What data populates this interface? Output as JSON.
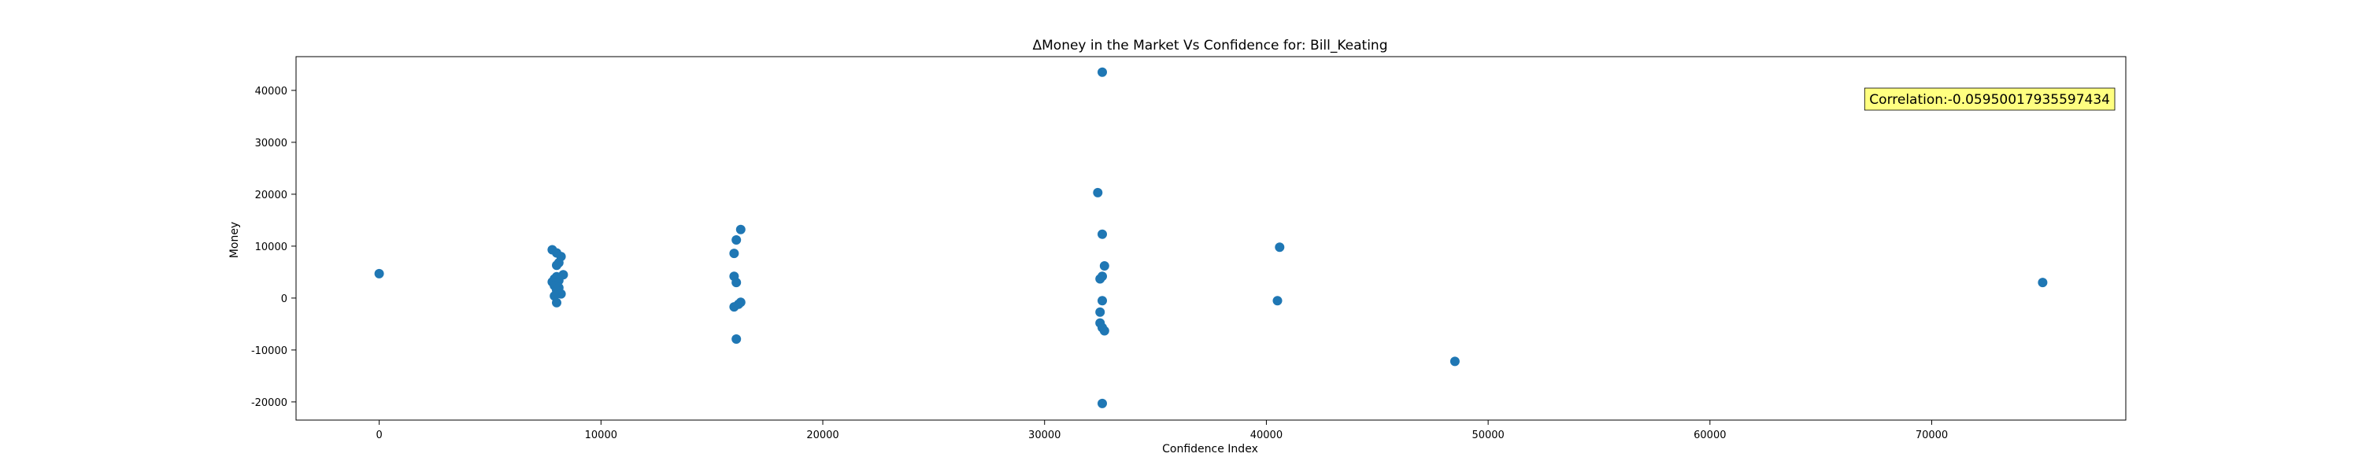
{
  "chart_data": {
    "type": "scatter",
    "title": "ΔMoney in the Market Vs Confidence for: Bill_Keating",
    "xlabel": "Confidence Index",
    "ylabel": "Money",
    "xlim": [
      -3750,
      78750
    ],
    "ylim": [
      -23500,
      46500
    ],
    "xticks": [
      0,
      10000,
      20000,
      30000,
      40000,
      50000,
      60000,
      70000
    ],
    "yticks": [
      -20000,
      -10000,
      0,
      10000,
      20000,
      30000,
      40000
    ],
    "grid": false,
    "marker_color": "#1f77b4",
    "annotation": {
      "text": "Correlation:-0.059500179355974​34",
      "position": "top-right",
      "facecolor": "#ffff80"
    },
    "points": [
      {
        "x": 0,
        "y": 4700
      },
      {
        "x": 7800,
        "y": 9300
      },
      {
        "x": 8000,
        "y": 8700
      },
      {
        "x": 8200,
        "y": 8000
      },
      {
        "x": 8000,
        "y": 6300
      },
      {
        "x": 8100,
        "y": 6800
      },
      {
        "x": 8300,
        "y": 4500
      },
      {
        "x": 8000,
        "y": 4100
      },
      {
        "x": 7900,
        "y": 3700
      },
      {
        "x": 8100,
        "y": 3400
      },
      {
        "x": 7800,
        "y": 3100
      },
      {
        "x": 8000,
        "y": 2800
      },
      {
        "x": 7900,
        "y": 2400
      },
      {
        "x": 8100,
        "y": 2000
      },
      {
        "x": 8000,
        "y": 1500
      },
      {
        "x": 8200,
        "y": 800
      },
      {
        "x": 7900,
        "y": 400
      },
      {
        "x": 8000,
        "y": -900
      },
      {
        "x": 16300,
        "y": 13200
      },
      {
        "x": 16100,
        "y": 11200
      },
      {
        "x": 16000,
        "y": 8600
      },
      {
        "x": 16000,
        "y": 4200
      },
      {
        "x": 16100,
        "y": 3000
      },
      {
        "x": 16300,
        "y": -800
      },
      {
        "x": 16200,
        "y": -1200
      },
      {
        "x": 16000,
        "y": -1700
      },
      {
        "x": 16100,
        "y": -7900
      },
      {
        "x": 32600,
        "y": 43500
      },
      {
        "x": 32400,
        "y": 20300
      },
      {
        "x": 32600,
        "y": 12300
      },
      {
        "x": 32700,
        "y": 6200
      },
      {
        "x": 32600,
        "y": 4200
      },
      {
        "x": 32500,
        "y": 3700
      },
      {
        "x": 32600,
        "y": -500
      },
      {
        "x": 32500,
        "y": -2700
      },
      {
        "x": 32500,
        "y": -4800
      },
      {
        "x": 32600,
        "y": -5700
      },
      {
        "x": 32700,
        "y": -6300
      },
      {
        "x": 32600,
        "y": -20300
      },
      {
        "x": 40600,
        "y": 9800
      },
      {
        "x": 40500,
        "y": -500
      },
      {
        "x": 48500,
        "y": -12200
      },
      {
        "x": 75000,
        "y": 3000
      }
    ]
  }
}
